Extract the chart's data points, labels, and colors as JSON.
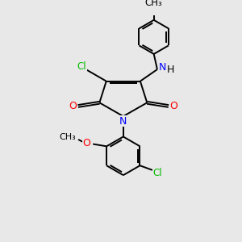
{
  "background_color": "#e8e8e8",
  "bond_color": "#000000",
  "n_color": "#0000ff",
  "o_color": "#ff0000",
  "cl_color": "#00bb00",
  "label_fontsize": 8.5,
  "figsize": [
    3.0,
    3.0
  ],
  "dpi": 100,
  "xlim": [
    0,
    10
  ],
  "ylim": [
    0,
    10
  ]
}
